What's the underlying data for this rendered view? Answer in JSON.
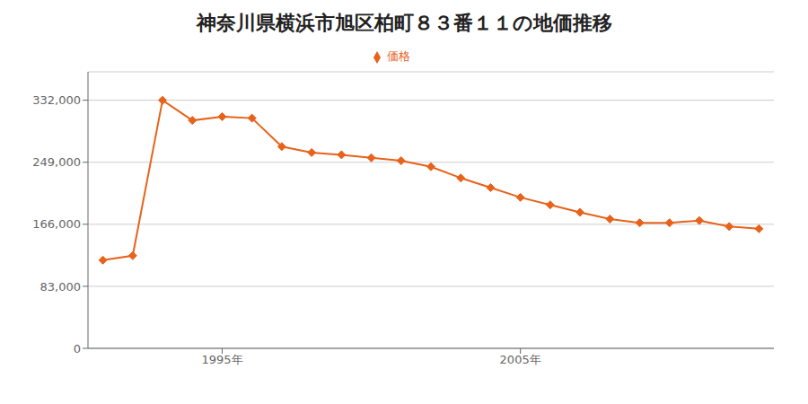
{
  "chart_data": {
    "type": "line",
    "title": "神奈川県横浜市旭区柏町８３番１１の地価推移",
    "x": [
      1991,
      1992,
      1993,
      1994,
      1995,
      1996,
      1997,
      1998,
      1999,
      2000,
      2001,
      2002,
      2003,
      2004,
      2005,
      2006,
      2007,
      2008,
      2009,
      2010,
      2011,
      2012,
      2013
    ],
    "series": [
      {
        "name": "価格",
        "color": "#E8621A",
        "marker": "diamond",
        "values": [
          118000,
          124000,
          332000,
          305000,
          310000,
          308000,
          270000,
          262000,
          259000,
          255000,
          251000,
          243000,
          228000,
          215000,
          202000,
          192000,
          182000,
          173000,
          168000,
          168000,
          171000,
          163000,
          160000
        ]
      }
    ],
    "xlim": [
      1990.5,
      2013.5
    ],
    "xticks": [
      {
        "value": 1995,
        "label": "1995年"
      },
      {
        "value": 2005,
        "label": "2005年"
      }
    ],
    "ylim": [
      0,
      370000
    ],
    "yticks": [
      0,
      {
        "value": 83000,
        "label": "83,000"
      },
      {
        "value": 166000,
        "label": "166,000"
      },
      {
        "value": 249000,
        "label": "249,000"
      },
      {
        "value": 332000,
        "label": "332,000"
      }
    ],
    "grid": "y",
    "legend": "top"
  }
}
